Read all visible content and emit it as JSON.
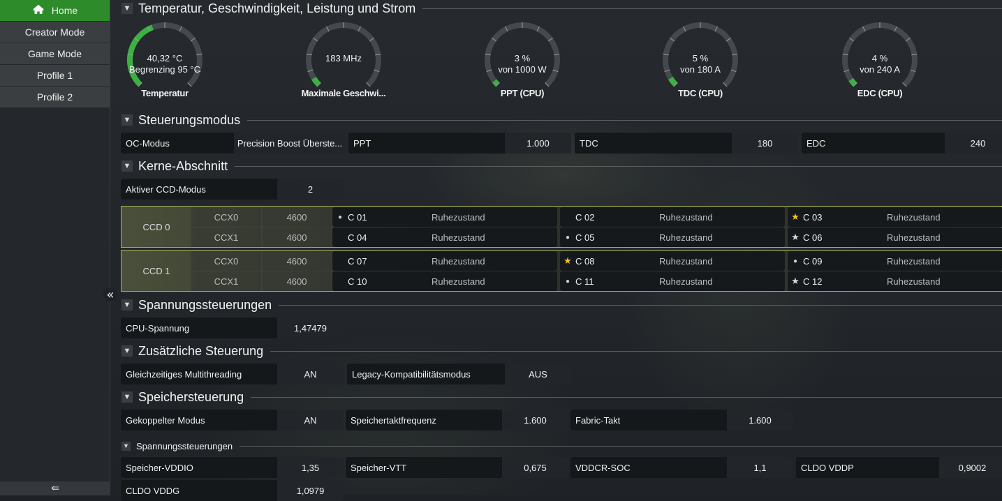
{
  "sidebar": {
    "items": [
      {
        "label": "Home",
        "icon": "home-icon",
        "active": true
      },
      {
        "label": "Creator Mode"
      },
      {
        "label": "Game Mode"
      },
      {
        "label": "Profile 1"
      },
      {
        "label": "Profile 2"
      }
    ],
    "footer_icon": "exit-icon"
  },
  "colors": {
    "accent": "#2e8b2a",
    "gauge_fill": "#3cb043",
    "ccd_border": "#a7b25a",
    "star_gold": "#f5c518",
    "star_white": "#d8d8d8",
    "dot": "#cfcfcf"
  },
  "sections": {
    "s1": "Temperatur, Geschwindigkeit, Leistung und Strom",
    "s2": "Steuerungsmodus",
    "s3": "Kerne-Abschnitt",
    "s4": "Spannungssteuerungen",
    "s5": "Zusätzliche Steuerung",
    "s6": "Speichersteuerung",
    "s7": "Spannungssteuerungen"
  },
  "gauges": [
    {
      "line1": "40,32 °C",
      "line2": "Begrenzing  95 °C",
      "label": "Temperatur",
      "fill_fraction": 0.424
    },
    {
      "line1": "183  MHz",
      "line2": "",
      "label": "Maximale Geschwi...",
      "fill_fraction": 0.05
    },
    {
      "line1": "3 %",
      "line2": "von  1000 W",
      "label": "PPT (CPU)",
      "fill_fraction": 0.03
    },
    {
      "line1": "5 %",
      "line2": "von  180 A",
      "label": "TDC (CPU)",
      "fill_fraction": 0.05
    },
    {
      "line1": "4 %",
      "line2": "von  240 A",
      "label": "EDC (CPU)",
      "fill_fraction": 0.04
    }
  ],
  "control": [
    {
      "label": "OC-Modus",
      "value": "Precision Boost Überste..."
    },
    {
      "label": "PPT",
      "value": "1.000"
    },
    {
      "label": "TDC",
      "value": "180"
    },
    {
      "label": "EDC",
      "value": "240"
    }
  ],
  "cores_section": {
    "ccd_mode": {
      "label": "Aktiver CCD-Modus",
      "value": "2"
    }
  },
  "ccds": [
    {
      "name": "CCD 0",
      "ccx": [
        {
          "name": "CCX0",
          "freq": "4600",
          "cores": [
            {
              "id": "C 01",
              "state": "Ruhezustand",
              "marker": "dot"
            },
            {
              "id": "C 02",
              "state": "Ruhezustand",
              "marker": ""
            },
            {
              "id": "C 03",
              "state": "Ruhezustand",
              "marker": "star-gold"
            }
          ]
        },
        {
          "name": "CCX1",
          "freq": "4600",
          "cores": [
            {
              "id": "C 04",
              "state": "Ruhezustand",
              "marker": ""
            },
            {
              "id": "C 05",
              "state": "Ruhezustand",
              "marker": "dot"
            },
            {
              "id": "C 06",
              "state": "Ruhezustand",
              "marker": "star-white"
            }
          ]
        }
      ]
    },
    {
      "name": "CCD 1",
      "ccx": [
        {
          "name": "CCX0",
          "freq": "4600",
          "cores": [
            {
              "id": "C 07",
              "state": "Ruhezustand",
              "marker": ""
            },
            {
              "id": "C 08",
              "state": "Ruhezustand",
              "marker": "star-gold"
            },
            {
              "id": "C 09",
              "state": "Ruhezustand",
              "marker": "dot"
            }
          ]
        },
        {
          "name": "CCX1",
          "freq": "4600",
          "cores": [
            {
              "id": "C 10",
              "state": "Ruhezustand",
              "marker": ""
            },
            {
              "id": "C 11",
              "state": "Ruhezustand",
              "marker": "dot"
            },
            {
              "id": "C 12",
              "state": "Ruhezustand",
              "marker": "star-white"
            }
          ]
        }
      ]
    }
  ],
  "voltage": [
    {
      "label": "CPU-Spannung",
      "value": "1,47479"
    }
  ],
  "extra": [
    {
      "label": "Gleichzeitiges Multithreading",
      "value": "AN"
    },
    {
      "label": "Legacy-Kompatibilitätsmodus",
      "value": "AUS"
    }
  ],
  "memory": [
    {
      "label": "Gekoppelter Modus",
      "value": "AN"
    },
    {
      "label": "Speichertaktfrequenz",
      "value": "1.600"
    },
    {
      "label": "Fabric-Takt",
      "value": "1.600"
    }
  ],
  "mem_voltage": [
    {
      "label": "Speicher-VDDIO",
      "value": "1,35"
    },
    {
      "label": "Speicher-VTT",
      "value": "0,675"
    },
    {
      "label": "VDDCR-SOC",
      "value": "1,1"
    },
    {
      "label": "CLDO VDDP",
      "value": "0,9002"
    },
    {
      "label": "CLDO VDDG",
      "value": "1,0979"
    }
  ]
}
